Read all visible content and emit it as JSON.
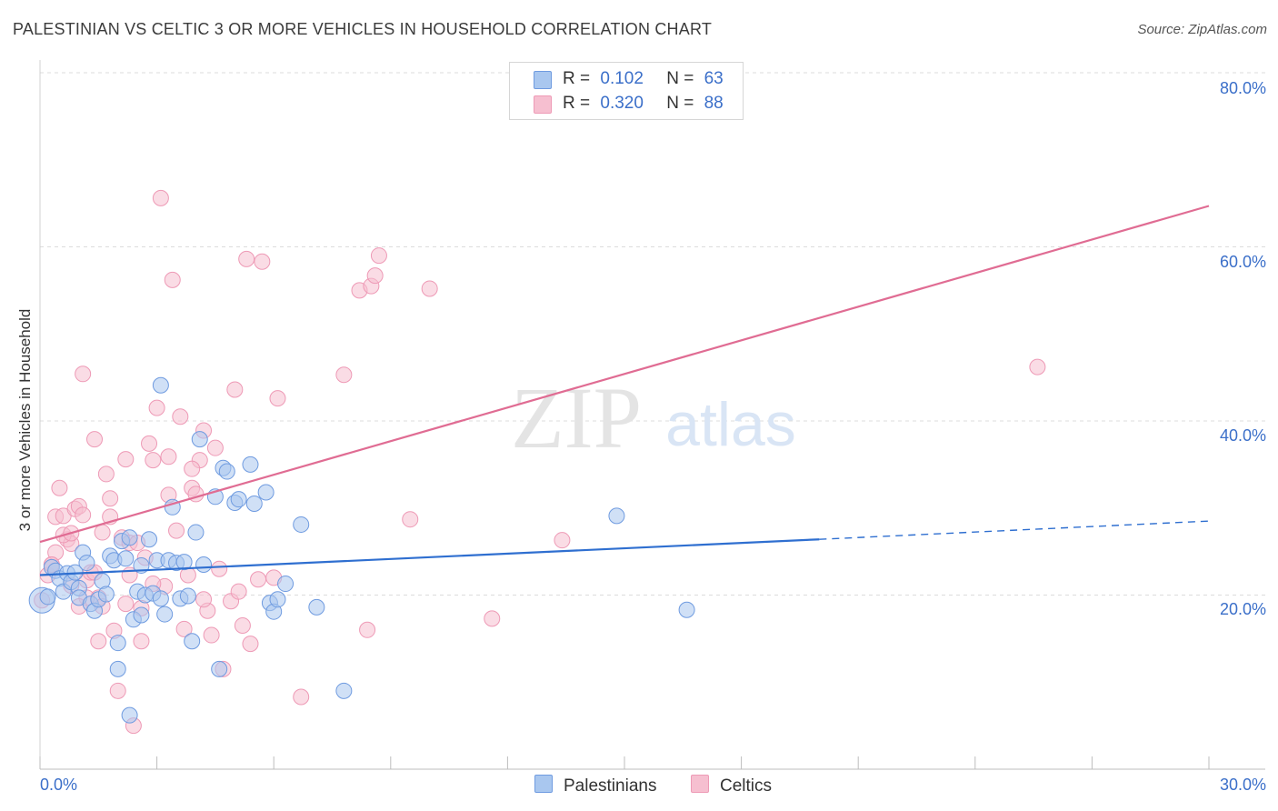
{
  "title": "PALESTINIAN VS CELTIC 3 OR MORE VEHICLES IN HOUSEHOLD CORRELATION CHART",
  "source": "Source: ZipAtlas.com",
  "watermark": {
    "zip": "ZIP",
    "atlas": "atlas"
  },
  "legend": {
    "rows": [
      {
        "r_label": "R =",
        "r_value": "0.102",
        "n_label": "N =",
        "n_value": "63"
      },
      {
        "r_label": "R =",
        "r_value": "0.320",
        "n_label": "N =",
        "n_value": "88"
      }
    ]
  },
  "colors": {
    "palestinians": "#a9c7ef",
    "palestinians_stroke": "#6f9be0",
    "palestinians_line": "#2f6fd0",
    "celtics": "#f6bfd0",
    "celtics_stroke": "#ee9ab6",
    "celtics_line": "#e06c93",
    "axis_text": "#3b6fc9"
  },
  "chart_data": {
    "type": "scatter",
    "title": "PALESTINIAN VS CELTIC 3 OR MORE VEHICLES IN HOUSEHOLD CORRELATION CHART",
    "xlabel": "",
    "ylabel": "3 or more Vehicles in Household",
    "xlim": [
      0,
      30
    ],
    "ylim": [
      0,
      80
    ],
    "x_tick_labels": [
      "0.0%",
      "30.0%"
    ],
    "y_tick_labels": [
      "20.0%",
      "40.0%",
      "60.0%",
      "80.0%"
    ],
    "y_ticks": [
      20,
      40,
      60,
      80
    ],
    "grid": true,
    "series": [
      {
        "name": "Palestinians",
        "r": 0.102,
        "n": 63,
        "trend": {
          "x0": 0,
          "y0": 22.3,
          "x1": 20,
          "y1": 26.4,
          "dashed_to_x": 30,
          "dashed_to_y": 28.5
        },
        "points": [
          [
            0.05,
            19.4
          ],
          [
            0.2,
            19.8
          ],
          [
            0.3,
            23.2
          ],
          [
            0.4,
            22.8
          ],
          [
            0.5,
            21.9
          ],
          [
            0.6,
            20.4
          ],
          [
            0.7,
            22.5
          ],
          [
            0.8,
            21.5
          ],
          [
            0.9,
            22.6
          ],
          [
            1.0,
            20.8
          ],
          [
            1.0,
            19.7
          ],
          [
            1.1,
            24.9
          ],
          [
            1.2,
            23.7
          ],
          [
            1.3,
            19.0
          ],
          [
            1.4,
            18.2
          ],
          [
            1.5,
            19.5
          ],
          [
            1.6,
            21.6
          ],
          [
            1.7,
            20.1
          ],
          [
            1.8,
            24.5
          ],
          [
            1.9,
            24.0
          ],
          [
            2.0,
            14.5
          ],
          [
            2.0,
            11.5
          ],
          [
            2.1,
            26.2
          ],
          [
            2.2,
            24.2
          ],
          [
            2.3,
            26.6
          ],
          [
            2.3,
            6.2
          ],
          [
            2.4,
            17.2
          ],
          [
            2.5,
            20.4
          ],
          [
            2.6,
            23.4
          ],
          [
            2.6,
            17.7
          ],
          [
            2.7,
            20.0
          ],
          [
            2.8,
            26.4
          ],
          [
            2.9,
            20.2
          ],
          [
            3.0,
            24.0
          ],
          [
            3.1,
            19.6
          ],
          [
            3.2,
            17.8
          ],
          [
            3.3,
            24.0
          ],
          [
            3.4,
            30.1
          ],
          [
            3.5,
            23.7
          ],
          [
            3.6,
            19.6
          ],
          [
            3.7,
            23.8
          ],
          [
            3.8,
            19.9
          ],
          [
            3.9,
            14.7
          ],
          [
            4.0,
            27.2
          ],
          [
            4.1,
            37.9
          ],
          [
            4.2,
            23.5
          ],
          [
            4.5,
            31.3
          ],
          [
            4.6,
            11.5
          ],
          [
            4.7,
            34.6
          ],
          [
            4.8,
            34.2
          ],
          [
            5.0,
            30.6
          ],
          [
            5.1,
            31.0
          ],
          [
            5.4,
            35.0
          ],
          [
            5.5,
            30.5
          ],
          [
            5.8,
            31.8
          ],
          [
            5.9,
            19.1
          ],
          [
            6.0,
            18.1
          ],
          [
            6.1,
            19.5
          ],
          [
            6.3,
            21.3
          ],
          [
            6.7,
            28.1
          ],
          [
            7.1,
            18.6
          ],
          [
            7.8,
            9.0
          ],
          [
            14.8,
            29.1
          ],
          [
            16.6,
            18.3
          ],
          [
            3.1,
            44.1
          ]
        ]
      },
      {
        "name": "Celtics",
        "r": 0.32,
        "n": 88,
        "trend": {
          "x0": 0,
          "y0": 26.1,
          "x1": 30,
          "y1": 64.7
        },
        "points": [
          [
            0.05,
            19.4
          ],
          [
            0.2,
            22.3
          ],
          [
            0.3,
            23.5
          ],
          [
            0.4,
            29.0
          ],
          [
            0.4,
            24.9
          ],
          [
            0.5,
            32.3
          ],
          [
            0.6,
            29.1
          ],
          [
            0.7,
            26.4
          ],
          [
            0.8,
            25.9
          ],
          [
            0.8,
            21.1
          ],
          [
            0.9,
            29.9
          ],
          [
            1.0,
            30.2
          ],
          [
            1.1,
            45.4
          ],
          [
            1.1,
            29.2
          ],
          [
            1.2,
            21.7
          ],
          [
            1.3,
            22.6
          ],
          [
            1.4,
            37.9
          ],
          [
            1.5,
            19.7
          ],
          [
            1.5,
            14.7
          ],
          [
            1.6,
            27.2
          ],
          [
            1.6,
            18.7
          ],
          [
            1.7,
            33.9
          ],
          [
            1.8,
            29.0
          ],
          [
            1.8,
            31.1
          ],
          [
            1.9,
            15.9
          ],
          [
            2.0,
            9.0
          ],
          [
            2.1,
            26.6
          ],
          [
            2.2,
            35.6
          ],
          [
            2.3,
            26.0
          ],
          [
            2.3,
            22.3
          ],
          [
            2.4,
            5.0
          ],
          [
            2.5,
            26.0
          ],
          [
            2.6,
            14.7
          ],
          [
            2.6,
            18.5
          ],
          [
            2.7,
            24.3
          ],
          [
            2.8,
            37.4
          ],
          [
            2.9,
            35.5
          ],
          [
            3.0,
            41.5
          ],
          [
            3.1,
            65.6
          ],
          [
            3.2,
            21.0
          ],
          [
            3.3,
            35.9
          ],
          [
            3.3,
            31.5
          ],
          [
            3.4,
            56.2
          ],
          [
            3.5,
            27.4
          ],
          [
            3.6,
            40.5
          ],
          [
            3.7,
            16.1
          ],
          [
            3.8,
            22.3
          ],
          [
            3.9,
            32.3
          ],
          [
            4.0,
            31.6
          ],
          [
            4.1,
            35.5
          ],
          [
            4.2,
            38.9
          ],
          [
            4.3,
            18.2
          ],
          [
            4.4,
            15.4
          ],
          [
            4.5,
            36.9
          ],
          [
            4.6,
            23.0
          ],
          [
            4.7,
            11.5
          ],
          [
            4.9,
            19.3
          ],
          [
            5.0,
            43.6
          ],
          [
            5.1,
            20.4
          ],
          [
            5.3,
            58.6
          ],
          [
            5.4,
            14.4
          ],
          [
            5.6,
            21.8
          ],
          [
            5.7,
            58.3
          ],
          [
            6.1,
            42.6
          ],
          [
            6.7,
            8.3
          ],
          [
            7.8,
            45.3
          ],
          [
            8.2,
            55.0
          ],
          [
            8.4,
            16.0
          ],
          [
            8.5,
            55.5
          ],
          [
            8.6,
            56.7
          ],
          [
            8.7,
            59.0
          ],
          [
            9.5,
            28.7
          ],
          [
            10.0,
            55.2
          ],
          [
            11.6,
            17.3
          ],
          [
            13.4,
            26.3
          ],
          [
            25.6,
            46.2
          ],
          [
            0.3,
            23.5
          ],
          [
            0.6,
            26.9
          ],
          [
            2.9,
            21.3
          ],
          [
            1.2,
            19.7
          ],
          [
            3.9,
            34.5
          ],
          [
            1.0,
            18.7
          ],
          [
            2.2,
            19.0
          ],
          [
            4.2,
            19.5
          ],
          [
            0.8,
            27.1
          ],
          [
            5.2,
            16.5
          ],
          [
            1.4,
            22.6
          ],
          [
            6.0,
            22.0
          ]
        ]
      }
    ]
  },
  "bottom_legend": [
    {
      "label": "Palestinians"
    },
    {
      "label": "Celtics"
    }
  ]
}
